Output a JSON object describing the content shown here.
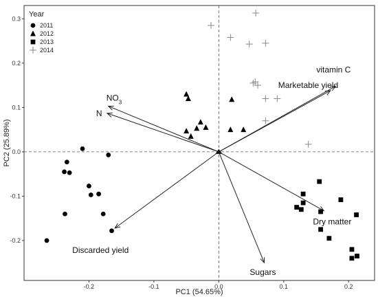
{
  "chart_data": {
    "type": "scatter",
    "xlabel": "PC1 (54.65%)",
    "ylabel": "PC2 (25.89%)",
    "xlim": [
      -0.3,
      0.24
    ],
    "ylim": [
      -0.29,
      0.33
    ],
    "x_ticks": [
      -0.2,
      -0.1,
      0.0,
      0.1,
      0.2
    ],
    "x_tick_labels": [
      "-0.2",
      "-0.1",
      "0.0",
      "0.1",
      "0.2"
    ],
    "y_ticks": [
      -0.2,
      -0.1,
      0.0,
      0.1,
      0.2,
      0.3
    ],
    "y_tick_labels": [
      "-0.2",
      "-0.1",
      "0.0",
      "0.1",
      "0.2",
      "0.3"
    ],
    "grid": false,
    "reference_lines": {
      "x": 0,
      "y": 0,
      "style": "dashed"
    },
    "legend": {
      "title": "Year",
      "placement": "top-left",
      "entries": [
        "2011",
        "2012",
        "2013",
        "2014"
      ],
      "markers": [
        "circle",
        "triangle",
        "square",
        "plus"
      ]
    },
    "series": [
      {
        "name": "2011",
        "marker": "circle",
        "x": [
          -0.265,
          -0.238,
          -0.234,
          -0.237,
          -0.21,
          -0.2,
          -0.197,
          -0.185,
          -0.178,
          -0.165,
          -0.23,
          -0.17
        ],
        "y": [
          -0.2,
          -0.045,
          -0.023,
          -0.14,
          0.007,
          -0.077,
          -0.097,
          -0.095,
          -0.14,
          -0.178,
          -0.047,
          -0.007
        ]
      },
      {
        "name": "2012",
        "marker": "triangle",
        "x": [
          -0.05,
          -0.047,
          -0.05,
          -0.028,
          -0.034,
          -0.02,
          -0.043,
          0.018,
          0.038,
          0.02
        ],
        "y": [
          0.13,
          0.12,
          0.047,
          0.067,
          0.053,
          0.055,
          0.035,
          0.05,
          0.05,
          0.118
        ]
      },
      {
        "name": "2013",
        "marker": "square",
        "x": [
          0.12,
          0.13,
          0.13,
          0.127,
          0.155,
          0.157,
          0.157,
          0.17,
          0.188,
          0.205,
          0.212,
          0.213,
          0.205
        ],
        "y": [
          -0.125,
          -0.095,
          -0.115,
          -0.13,
          -0.067,
          -0.135,
          -0.175,
          -0.195,
          -0.108,
          -0.22,
          -0.142,
          -0.235,
          -0.24
        ]
      },
      {
        "name": "2014",
        "marker": "plus",
        "x": [
          -0.012,
          0.057,
          0.018,
          0.047,
          0.072,
          0.053,
          0.06,
          0.056,
          0.072,
          0.09,
          0.072,
          0.138
        ],
        "y": [
          0.285,
          0.313,
          0.258,
          0.243,
          0.245,
          0.155,
          0.15,
          0.158,
          0.12,
          0.12,
          0.07,
          0.017
        ]
      }
    ],
    "loadings": [
      {
        "label": "vitamin C",
        "x": 0.18,
        "y": 0.148
      },
      {
        "label": "Marketable yield",
        "x": 0.172,
        "y": 0.138
      },
      {
        "label": "NO3",
        "label_base": "NO",
        "label_sub": "3",
        "x": -0.17,
        "y": 0.103
      },
      {
        "label": "N",
        "x": -0.172,
        "y": 0.087
      },
      {
        "label": "Discarded yield",
        "x": -0.16,
        "y": -0.172
      },
      {
        "label": "Dry matter",
        "x": 0.162,
        "y": -0.133
      },
      {
        "label": "Sugars",
        "x": 0.07,
        "y": -0.25
      }
    ]
  }
}
